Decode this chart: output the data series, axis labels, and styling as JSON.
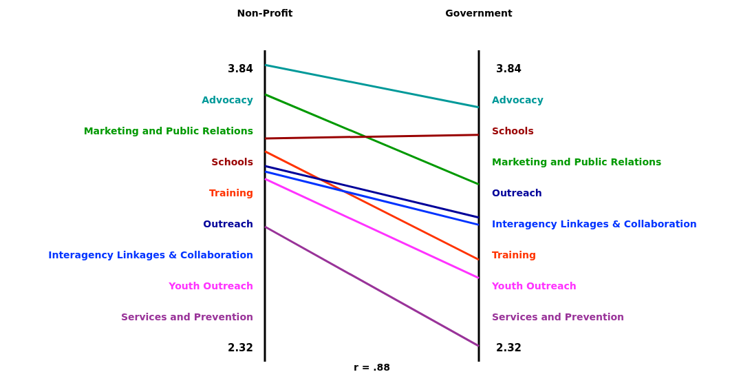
{
  "chart_data": {
    "type": "line",
    "categories": [
      "Non-Profit",
      "Government"
    ],
    "ylim": [
      2.245,
      3.94
    ],
    "yticks": [
      3.84,
      2.32
    ],
    "y2lim": [
      2.245,
      3.94
    ],
    "y2ticks": [
      3.84,
      2.32
    ],
    "grid": "x",
    "marker": "none",
    "annotations": [
      "r = .88"
    ],
    "series": [
      {
        "name": "Advocacy",
        "color": "#009999",
        "values": [
          3.86,
          3.63
        ]
      },
      {
        "name": "Marketing and Public Relations",
        "color": "#009900",
        "values": [
          3.7,
          3.21
        ]
      },
      {
        "name": "Schools",
        "color": "#990000",
        "values": [
          3.46,
          3.48
        ]
      },
      {
        "name": "Training",
        "color": "#ff3300",
        "values": [
          3.39,
          2.8
        ]
      },
      {
        "name": "Outreach",
        "color": "#000099",
        "values": [
          3.31,
          3.03
        ]
      },
      {
        "name": "Interagency Linkages & Collaboration",
        "color": "#0033ff",
        "values": [
          3.28,
          2.99
        ]
      },
      {
        "name": "Youth Outreach",
        "color": "#ff33ff",
        "values": [
          3.24,
          2.7
        ]
      },
      {
        "name": "Services and Prevention",
        "color": "#993399",
        "values": [
          2.98,
          2.33
        ]
      }
    ]
  }
}
